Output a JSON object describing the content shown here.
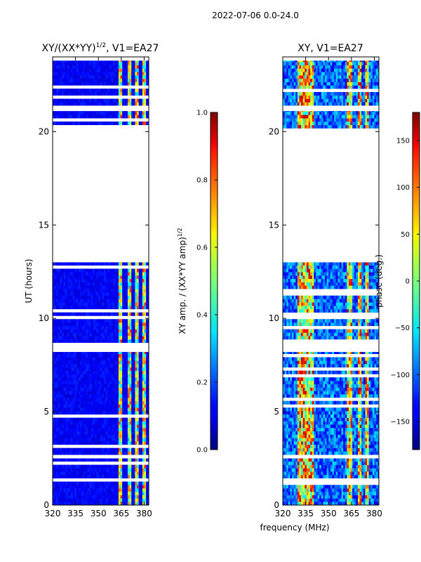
{
  "suptitle": "2022-07-06 0.0-24.0",
  "shared_xlabel": "frequency (MHz)",
  "colors": {
    "band_bg": "#0000cc",
    "white": "#ffffff"
  },
  "chart_data": [
    {
      "type": "heatmap",
      "title": "XY/(XX*YY)^1/2, V1=EA27",
      "title_main": "XY/(XX*YY)",
      "title_sup": "1/2",
      "title_tail": ", V1=EA27",
      "xlabel": "",
      "ylabel": "UT (hours)",
      "xlim": [
        320,
        383
      ],
      "ylim": [
        0,
        24
      ],
      "xticks": [
        320,
        335,
        350,
        365,
        380
      ],
      "yticks": [
        0,
        5,
        10,
        15,
        20
      ],
      "colorbar": {
        "label": "XY amp. / (XX*YY amp)^1/2",
        "label_main": "XY amp. / (XX*YY amp)",
        "label_sup": "1/2",
        "range": [
          0.0,
          1.0
        ],
        "ticks": [
          "0.0",
          "0.2",
          "0.4",
          "0.6",
          "0.8",
          "1.0"
        ],
        "tick_values": [
          0.0,
          0.2,
          0.4,
          0.6,
          0.8,
          1.0
        ]
      },
      "data_bands_hours": [
        [
          0.0,
          2.5
        ],
        [
          2.7,
          8.2
        ],
        [
          8.7,
          13.0
        ],
        [
          20.0,
          21.1
        ],
        [
          21.4,
          23.8
        ]
      ],
      "bright_channels_mhz": [
        [
          362,
          365
        ],
        [
          368,
          371
        ],
        [
          373,
          376
        ],
        [
          378,
          380
        ]
      ]
    },
    {
      "type": "heatmap",
      "title": "XY, V1=EA27",
      "xlabel": "frequency (MHz)",
      "ylabel": "",
      "xlim": [
        320,
        383
      ],
      "ylim": [
        0,
        24
      ],
      "xticks": [
        320,
        335,
        350,
        365,
        380
      ],
      "yticks": [
        0,
        5,
        10,
        15,
        20
      ],
      "colorbar": {
        "label": "phase (deg.)",
        "range": [
          -180,
          180
        ],
        "ticks": [
          "150",
          "100",
          "50",
          "0",
          "−50",
          "−100",
          "−150"
        ],
        "tick_values": [
          150,
          100,
          50,
          0,
          -50,
          -100,
          -150
        ]
      },
      "data_bands_hours": [
        [
          0.0,
          2.5
        ],
        [
          2.7,
          8.2
        ],
        [
          8.7,
          13.0
        ],
        [
          20.0,
          21.1
        ],
        [
          21.4,
          23.8
        ]
      ],
      "bright_channels_mhz": [
        [
          329,
          340
        ],
        [
          361,
          365
        ],
        [
          368,
          371
        ],
        [
          373,
          376
        ]
      ]
    }
  ]
}
